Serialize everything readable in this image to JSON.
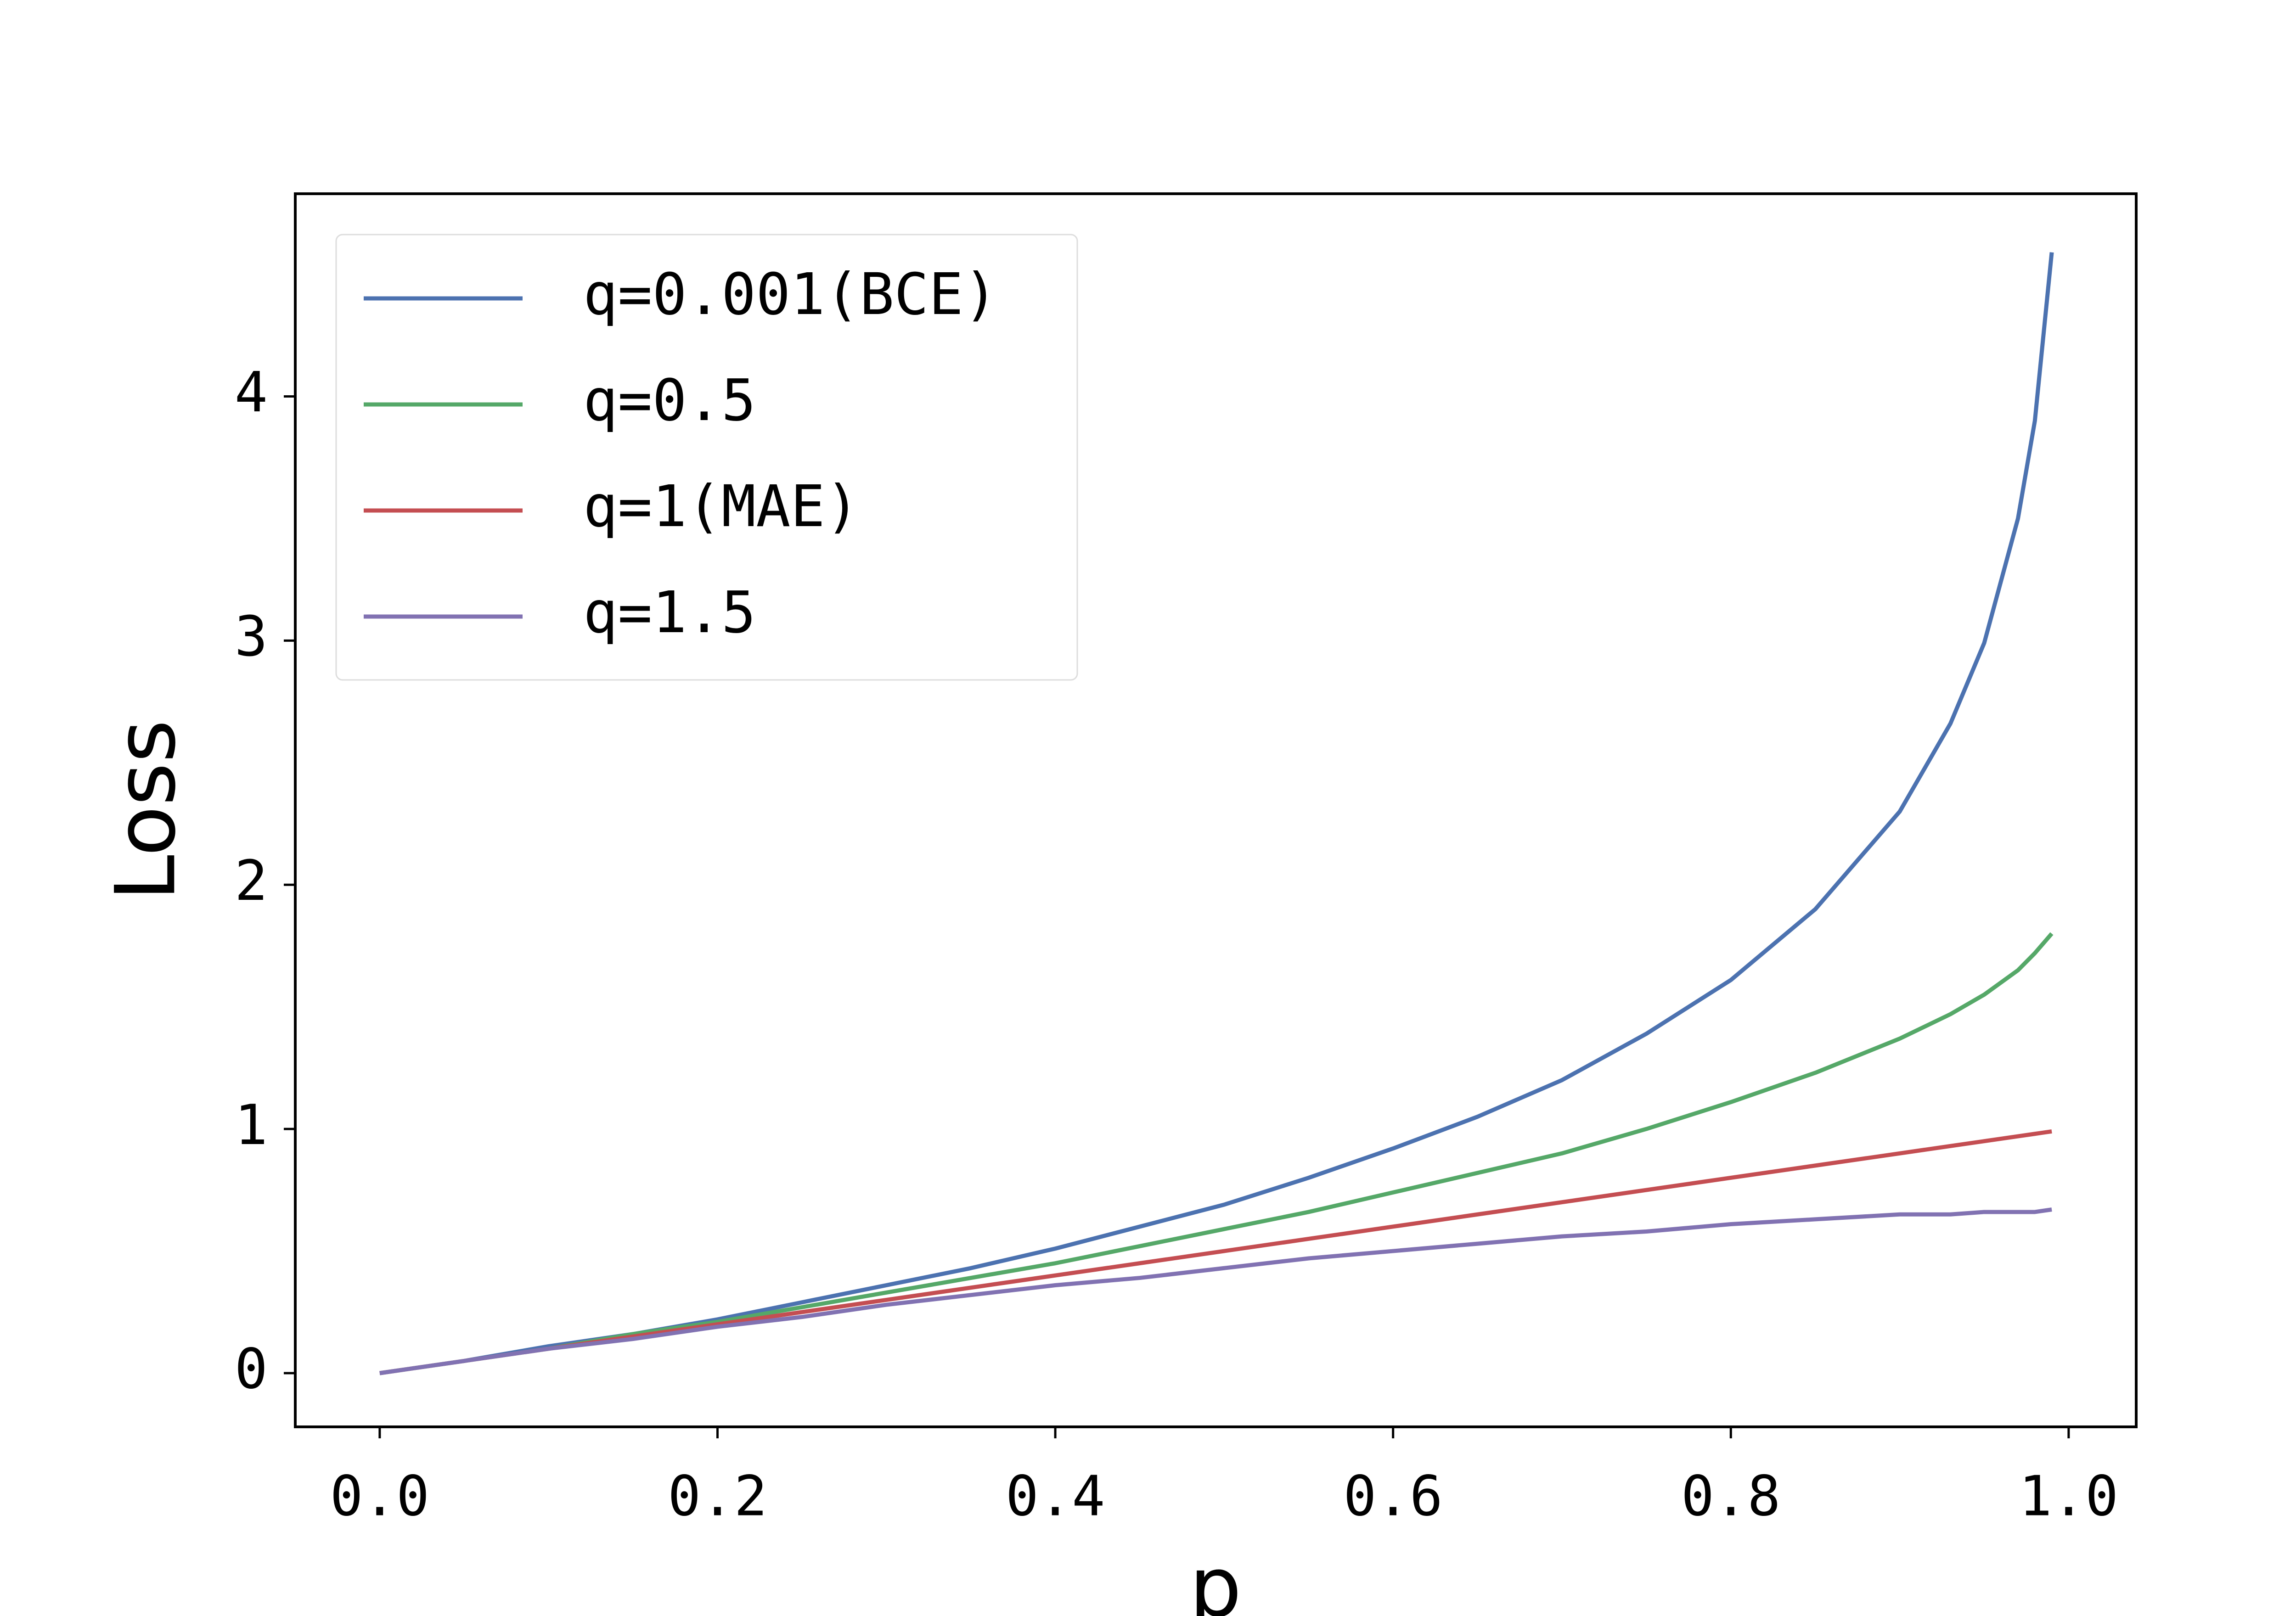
{
  "chart_data": {
    "type": "line",
    "xlabel": "p",
    "ylabel": "Loss",
    "x": [
      0,
      0.05,
      0.1,
      0.15,
      0.2,
      0.25,
      0.3,
      0.35,
      0.4,
      0.45,
      0.5,
      0.55,
      0.6,
      0.65,
      0.7,
      0.75,
      0.8,
      0.85,
      0.9,
      0.93,
      0.95,
      0.97,
      0.98,
      0.99
    ],
    "series": [
      {
        "name": "q=0.001(BCE)",
        "color": "#4c72b0",
        "values": [
          0,
          0.05,
          0.11,
          0.16,
          0.22,
          0.29,
          0.36,
          0.43,
          0.51,
          0.6,
          0.69,
          0.8,
          0.92,
          1.05,
          1.2,
          1.39,
          1.61,
          1.9,
          2.3,
          2.66,
          2.99,
          3.5,
          3.9,
          4.59
        ]
      },
      {
        "name": "q=0.5",
        "color": "#55a868",
        "values": [
          0,
          0.05,
          0.1,
          0.16,
          0.21,
          0.27,
          0.33,
          0.39,
          0.45,
          0.52,
          0.59,
          0.66,
          0.74,
          0.82,
          0.9,
          1.0,
          1.11,
          1.23,
          1.37,
          1.47,
          1.55,
          1.65,
          1.72,
          1.8
        ]
      },
      {
        "name": "q=1(MAE)",
        "color": "#c44e52",
        "values": [
          0,
          0.05,
          0.1,
          0.15,
          0.2,
          0.25,
          0.3,
          0.35,
          0.4,
          0.45,
          0.5,
          0.55,
          0.6,
          0.65,
          0.7,
          0.75,
          0.8,
          0.85,
          0.9,
          0.93,
          0.95,
          0.97,
          0.98,
          0.99
        ]
      },
      {
        "name": "q=1.5",
        "color": "#8172b2",
        "values": [
          0,
          0.05,
          0.1,
          0.14,
          0.19,
          0.23,
          0.28,
          0.32,
          0.36,
          0.39,
          0.43,
          0.47,
          0.5,
          0.53,
          0.56,
          0.58,
          0.61,
          0.63,
          0.65,
          0.65,
          0.66,
          0.66,
          0.66,
          0.67
        ]
      }
    ],
    "xlim": [
      -0.05,
      1.04
    ],
    "ylim": [
      -0.22,
      4.83
    ],
    "xticks": [
      {
        "value": 0,
        "label": "0.0"
      },
      {
        "value": 0.2,
        "label": "0.2"
      },
      {
        "value": 0.4,
        "label": "0.4"
      },
      {
        "value": 0.6,
        "label": "0.6"
      },
      {
        "value": 0.8,
        "label": "0.8"
      },
      {
        "value": 1.0,
        "label": "1.0"
      }
    ],
    "yticks": [
      0,
      1,
      2,
      3,
      4
    ],
    "grid": false,
    "legend": "upper left"
  }
}
